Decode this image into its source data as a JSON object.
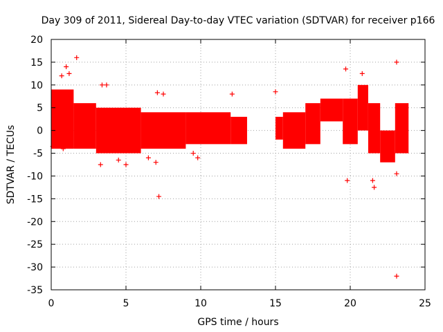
{
  "chart_data": {
    "type": "scatter",
    "title": "Day 309 of 2011, Sidereal Day-to-day VTEC variation (SDTVAR) for receiver p166",
    "xlabel": "GPS time / hours",
    "ylabel": "SDTVAR / TECUs",
    "xlim": [
      0,
      25
    ],
    "ylim": [
      -35,
      20
    ],
    "xticks": [
      0,
      5,
      10,
      15,
      20,
      25
    ],
    "yticks": [
      -35,
      -30,
      -25,
      -20,
      -15,
      -10,
      -5,
      0,
      5,
      10,
      15,
      20
    ],
    "grid": true,
    "marker": "+",
    "color": "#ff0000",
    "series": [
      {
        "name": "SDTVAR",
        "dense_bands": [
          {
            "x": [
              0.0,
              1.5
            ],
            "ymin": -4,
            "ymax": 9
          },
          {
            "x": [
              1.5,
              3.0
            ],
            "ymin": -4,
            "ymax": 6
          },
          {
            "x": [
              3.0,
              6.0
            ],
            "ymin": -5,
            "ymax": 5
          },
          {
            "x": [
              6.0,
              9.0
            ],
            "ymin": -4,
            "ymax": 4
          },
          {
            "x": [
              9.0,
              12.0
            ],
            "ymin": -3,
            "ymax": 4
          },
          {
            "x": [
              12.0,
              13.1
            ],
            "ymin": -3,
            "ymax": 3
          },
          {
            "x": [
              15.0,
              15.5
            ],
            "ymin": -2,
            "ymax": 3
          },
          {
            "x": [
              15.5,
              17.0
            ],
            "ymin": -4,
            "ymax": 4
          },
          {
            "x": [
              17.0,
              18.0
            ],
            "ymin": -3,
            "ymax": 6
          },
          {
            "x": [
              18.0,
              19.5
            ],
            "ymin": 2,
            "ymax": 7
          },
          {
            "x": [
              19.5,
              20.5
            ],
            "ymin": -3,
            "ymax": 7
          },
          {
            "x": [
              20.5,
              21.2
            ],
            "ymin": 0,
            "ymax": 10
          },
          {
            "x": [
              21.2,
              22.0
            ],
            "ymin": -5,
            "ymax": 6
          },
          {
            "x": [
              22.0,
              23.0
            ],
            "ymin": -7,
            "ymax": 0
          },
          {
            "x": [
              23.0,
              23.9
            ],
            "ymin": -5,
            "ymax": 6
          }
        ],
        "points": [
          {
            "x": 0.2,
            "y": 8
          },
          {
            "x": 0.7,
            "y": 12
          },
          {
            "x": 1.0,
            "y": 14
          },
          {
            "x": 1.2,
            "y": 12.5
          },
          {
            "x": 1.7,
            "y": 16
          },
          {
            "x": 0.1,
            "y": -3.5
          },
          {
            "x": 0.8,
            "y": -4
          },
          {
            "x": 3.4,
            "y": 10
          },
          {
            "x": 3.7,
            "y": 10
          },
          {
            "x": 3.3,
            "y": -7.5
          },
          {
            "x": 4.5,
            "y": -6.5
          },
          {
            "x": 5.0,
            "y": -7.5
          },
          {
            "x": 6.5,
            "y": -6
          },
          {
            "x": 7.0,
            "y": -7
          },
          {
            "x": 7.2,
            "y": -14.5
          },
          {
            "x": 7.1,
            "y": 8.3
          },
          {
            "x": 7.5,
            "y": 8
          },
          {
            "x": 9.5,
            "y": -5
          },
          {
            "x": 9.8,
            "y": -6
          },
          {
            "x": 12.1,
            "y": 8
          },
          {
            "x": 15.0,
            "y": 8.5
          },
          {
            "x": 19.7,
            "y": 13.5
          },
          {
            "x": 19.8,
            "y": -11
          },
          {
            "x": 20.8,
            "y": 12.5
          },
          {
            "x": 21.5,
            "y": -11
          },
          {
            "x": 21.6,
            "y": -12.5
          },
          {
            "x": 23.1,
            "y": 15
          },
          {
            "x": 23.1,
            "y": -9.5
          },
          {
            "x": 23.1,
            "y": -32
          }
        ]
      }
    ]
  }
}
